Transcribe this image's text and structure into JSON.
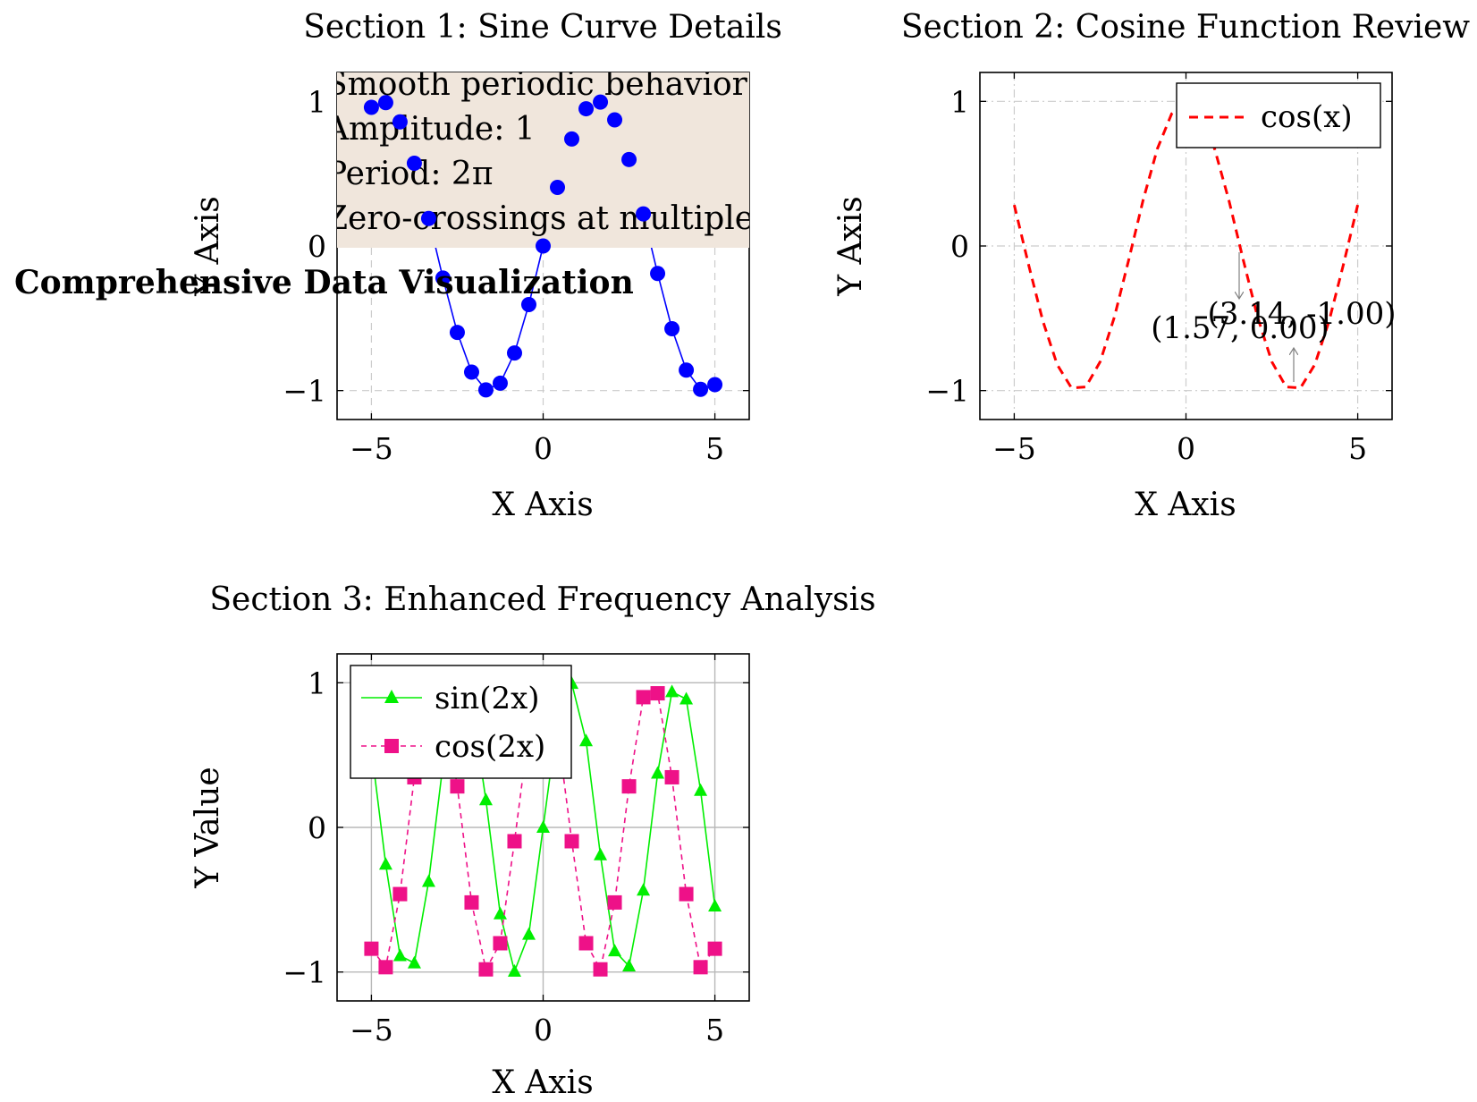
{
  "main_title": "Comprehensive Data Visualization",
  "colors": {
    "sin": "#0000ff",
    "cos": "#ff0000",
    "sin2x": "#00ee00",
    "cos2x": "#ee1188",
    "infobox_bg": "#f0e6dc",
    "grid": "#cccccc",
    "annotation": "#808080"
  },
  "chart_data": [
    {
      "type": "line",
      "title": "Section 1: Sine Curve Details",
      "xlabel": "X Axis",
      "ylabel": "Y Axis",
      "xlim": [
        -6,
        6
      ],
      "ylim": [
        -1.2,
        1.2
      ],
      "xticks": [
        -5,
        0,
        5
      ],
      "yticks": [
        -1,
        0,
        1
      ],
      "grid": "dashed",
      "series": [
        {
          "function": "sin(x)",
          "marker": "circle",
          "x": [
            -5,
            -4.583,
            -4.167,
            -3.75,
            -3.333,
            -2.917,
            -2.5,
            -2.083,
            -1.667,
            -1.25,
            -0.833,
            -0.417,
            0,
            0.417,
            0.833,
            1.25,
            1.667,
            2.083,
            2.5,
            2.917,
            3.333,
            3.75,
            4.167,
            4.583,
            5
          ],
          "y": [
            0.959,
            0.991,
            0.858,
            0.572,
            0.19,
            -0.222,
            -0.598,
            -0.872,
            -0.995,
            -0.949,
            -0.74,
            -0.405,
            0,
            0.405,
            0.74,
            0.949,
            0.995,
            0.872,
            0.598,
            0.222,
            -0.19,
            -0.572,
            -0.858,
            -0.991,
            -0.959
          ]
        }
      ],
      "info_box": [
        "Smooth periodic behavior",
        "Amplitude: 1",
        "Period: 2π",
        "Zero-crossings at multiples of π"
      ]
    },
    {
      "type": "line",
      "title": "Section 2: Cosine Function Review",
      "xlabel": "X Axis",
      "ylabel": "Y Axis",
      "xlim": [
        -6,
        6
      ],
      "ylim": [
        -1.2,
        1.2
      ],
      "xticks": [
        -5,
        0,
        5
      ],
      "yticks": [
        -1,
        0,
        1
      ],
      "grid": "dash-dot",
      "legend": "top-right",
      "series": [
        {
          "name": "cos(x)",
          "function": "cos(x)",
          "style": "dashed",
          "x_range": [
            -5,
            5
          ],
          "samples": 25
        }
      ],
      "annotations": [
        {
          "text": "(3.14, -1.00)",
          "x": 3.14,
          "y": -1.0
        },
        {
          "text": "(1.57, 0.00)",
          "x": 1.57,
          "y": 0.0
        }
      ]
    },
    {
      "type": "line",
      "title": "Section 3: Enhanced Frequency Analysis",
      "xlabel": "X Axis",
      "ylabel": "Y Value",
      "xlim": [
        -6,
        6
      ],
      "ylim": [
        -1.2,
        1.2
      ],
      "xticks": [
        -5,
        0,
        5
      ],
      "yticks": [
        -1,
        0,
        1
      ],
      "grid": "solid",
      "legend": "top-left",
      "series": [
        {
          "name": "sin(2x)",
          "function": "sin(2x)",
          "marker": "triangle",
          "style": "solid",
          "x_range": [
            -5,
            5
          ],
          "samples": 25
        },
        {
          "name": "cos(2x)",
          "function": "cos(2x)",
          "marker": "square",
          "style": "dashed",
          "x_range": [
            -5,
            5
          ],
          "samples": 25
        }
      ]
    }
  ]
}
